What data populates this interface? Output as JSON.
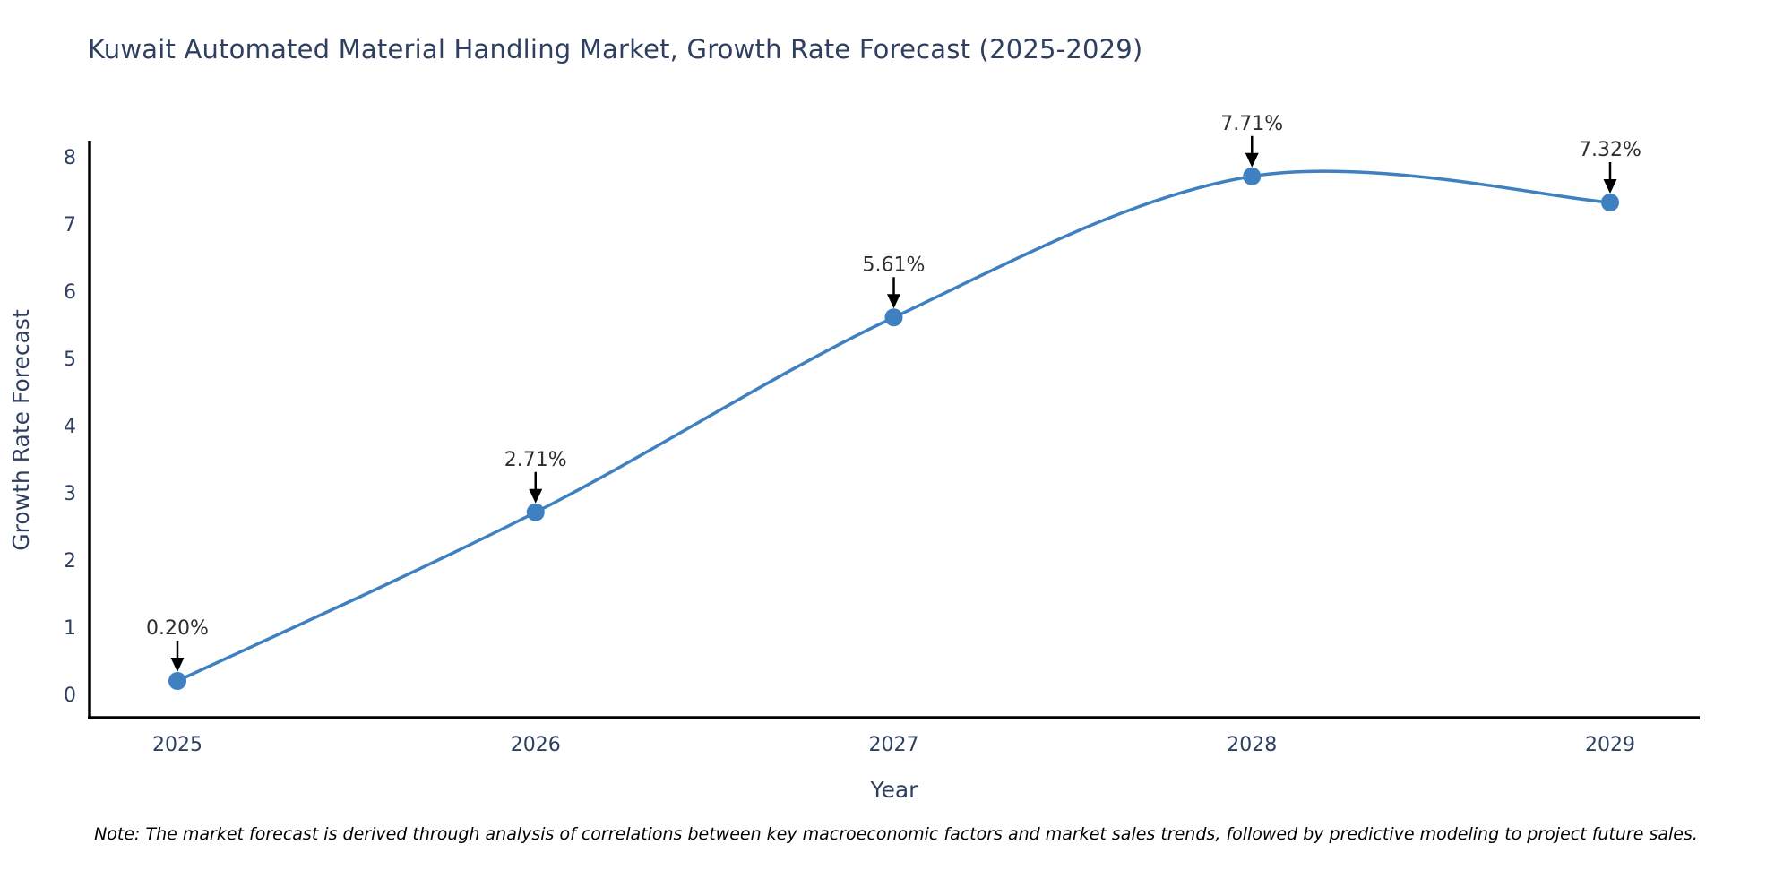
{
  "chart_data": {
    "type": "line",
    "title": "Kuwait Automated Material Handling Market, Growth Rate Forecast (2025-2029)",
    "xlabel": "Year",
    "ylabel": "Growth Rate Forecast",
    "x": [
      2025,
      2026,
      2027,
      2028,
      2029
    ],
    "values": [
      0.2,
      2.71,
      5.61,
      7.71,
      7.32
    ],
    "point_labels": [
      "0.20%",
      "2.71%",
      "5.61%",
      "7.71%",
      "7.32%"
    ],
    "xticks": [
      "2025",
      "2026",
      "2027",
      "2028",
      "2029"
    ],
    "yticks": [
      0,
      1,
      2,
      3,
      4,
      5,
      6,
      7,
      8
    ],
    "ylim": [
      0,
      8
    ],
    "grid": false,
    "legend": "none",
    "smooth": true,
    "colors": {
      "line": "#3e80c0",
      "marker": "#3e80c0",
      "axis": "#000000",
      "tick_label": "#2e3f5f",
      "axis_label": "#2e3f5f",
      "title": "#2e3f5f",
      "annotation_text": "#2e2e2e",
      "annotation_arrow": "#000000",
      "background": "#ffffff"
    },
    "note": "Note: The market forecast is derived through analysis of correlations between key macroeconomic factors and market sales trends, followed by predictive modeling to project future sales."
  }
}
